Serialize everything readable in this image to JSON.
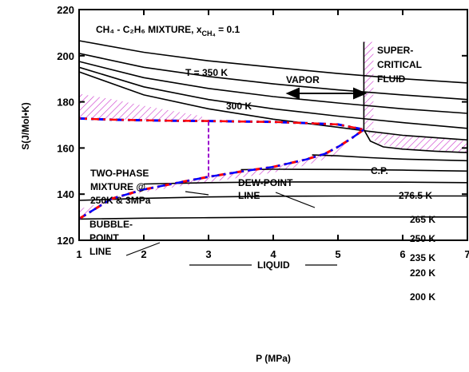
{
  "chart_data": {
    "type": "line",
    "title": "CH₄ - C₂H₆ MIXTURE, x",
    "title_subscript": "CH₄",
    "title_suffix": " = 0.1",
    "xlabel": "P (MPa)",
    "ylabel": "S(J/Mol•K)",
    "xlim": [
      1,
      7
    ],
    "ylim": [
      120,
      220
    ],
    "xticks": [
      "1",
      "2",
      "3",
      "4",
      "5",
      "6",
      "7"
    ],
    "yticks": [
      "120",
      "140",
      "160",
      "180",
      "200",
      "220"
    ],
    "grid": false,
    "series": [
      {
        "name": "T = 350 K",
        "x": [
          1,
          2,
          3,
          4,
          5,
          6,
          7
        ],
        "y": [
          206.5,
          201.5,
          197.8,
          195.0,
          192.3,
          190.0,
          188.2
        ]
      },
      {
        "x": [
          1,
          2,
          3,
          4,
          5,
          6,
          7
        ],
        "y": [
          201.0,
          195.0,
          191.0,
          187.8,
          185.2,
          183.0,
          181.0
        ]
      },
      {
        "name": "300 K",
        "x": [
          1,
          2,
          3,
          4,
          5,
          6,
          7
        ],
        "y": [
          197.5,
          190.5,
          185.8,
          182.3,
          179.5,
          177.0,
          175.0
        ]
      },
      {
        "x": [
          1,
          2,
          3,
          4,
          5,
          6,
          7
        ],
        "y": [
          195.0,
          186.5,
          181.0,
          177.0,
          173.8,
          171.0,
          168.5
        ]
      },
      {
        "x": [
          1,
          2,
          3,
          4,
          5,
          5.4,
          6,
          7
        ],
        "y": [
          193.0,
          183.0,
          177.0,
          172.5,
          169.0,
          167.5,
          165.5,
          163.5
        ]
      },
      {
        "name": "276.5 K",
        "x": [
          5.4,
          5.5,
          5.7,
          6.0,
          6.5,
          7
        ],
        "y": [
          168.0,
          163.0,
          160.5,
          159.5,
          158.6,
          158.0
        ]
      },
      {
        "name": "265 K",
        "x": [
          4.6,
          5,
          5.5,
          6,
          7
        ],
        "y": [
          157.0,
          156.6,
          155.8,
          155.2,
          154.5
        ]
      },
      {
        "name": "250 K",
        "x": [
          3.5,
          4,
          5,
          6,
          7
        ],
        "y": [
          150.6,
          150.8,
          150.7,
          150.4,
          150.0
        ]
      },
      {
        "name": "235 K",
        "x": [
          2,
          3,
          4,
          5,
          6,
          7
        ],
        "y": [
          144.4,
          145.0,
          145.3,
          145.3,
          145.2,
          145.0
        ]
      },
      {
        "name": "220 K",
        "x": [
          1,
          2,
          3,
          4,
          5,
          6,
          7
        ],
        "y": [
          137.3,
          138.2,
          138.8,
          139.1,
          139.2,
          139.2,
          139.2
        ]
      },
      {
        "name": "200 K",
        "x": [
          1,
          2,
          3,
          4,
          5,
          6,
          7
        ],
        "y": [
          129.2,
          129.6,
          129.8,
          130.0,
          130.1,
          130.1,
          130.1
        ]
      },
      {
        "name": "DEW-POINT LINE",
        "style": "dashdot",
        "x": [
          1,
          1.5,
          2,
          2.5,
          3,
          3.5,
          4,
          4.5,
          5,
          5.4
        ],
        "y": [
          172.8,
          172.3,
          172.0,
          171.8,
          171.7,
          171.5,
          171.3,
          170.8,
          170.2,
          168.0
        ]
      },
      {
        "name": "BUBBLE-POINT LINE",
        "style": "dashdot",
        "x": [
          1,
          1.5,
          2,
          2.5,
          3,
          3.5,
          4,
          4.5,
          4.8,
          5,
          5.2,
          5.4
        ],
        "y": [
          129.3,
          138.0,
          142.0,
          144.8,
          147.5,
          149.8,
          151.8,
          155.0,
          157.5,
          160.5,
          164.0,
          168.0
        ]
      },
      {
        "name": "tie line",
        "style": "vertical-dashed",
        "x": [
          3,
          3
        ],
        "y": [
          147.5,
          171.7
        ]
      }
    ],
    "annotations": [
      "T = 350 K",
      "300 K",
      "VAPOR",
      "SUPER-",
      "CRITICAL",
      "FLUID",
      "TWO-PHASE",
      "MIXTURE @",
      "250K & 3MPa",
      "DEW-POINT",
      "LINE",
      "C.P.",
      "276.5 K",
      "265 K",
      "250 K",
      "235 K",
      "220 K",
      "200 K",
      "BUBBLE-",
      "POINT",
      "LINE",
      "LIQUID"
    ],
    "colors": {
      "dew_dashes": "#ff0000",
      "bubble_dashes": "#0000ff",
      "hatch": "#cc33cc",
      "tie_line": "#9900cc",
      "lines": "#000000"
    }
  }
}
